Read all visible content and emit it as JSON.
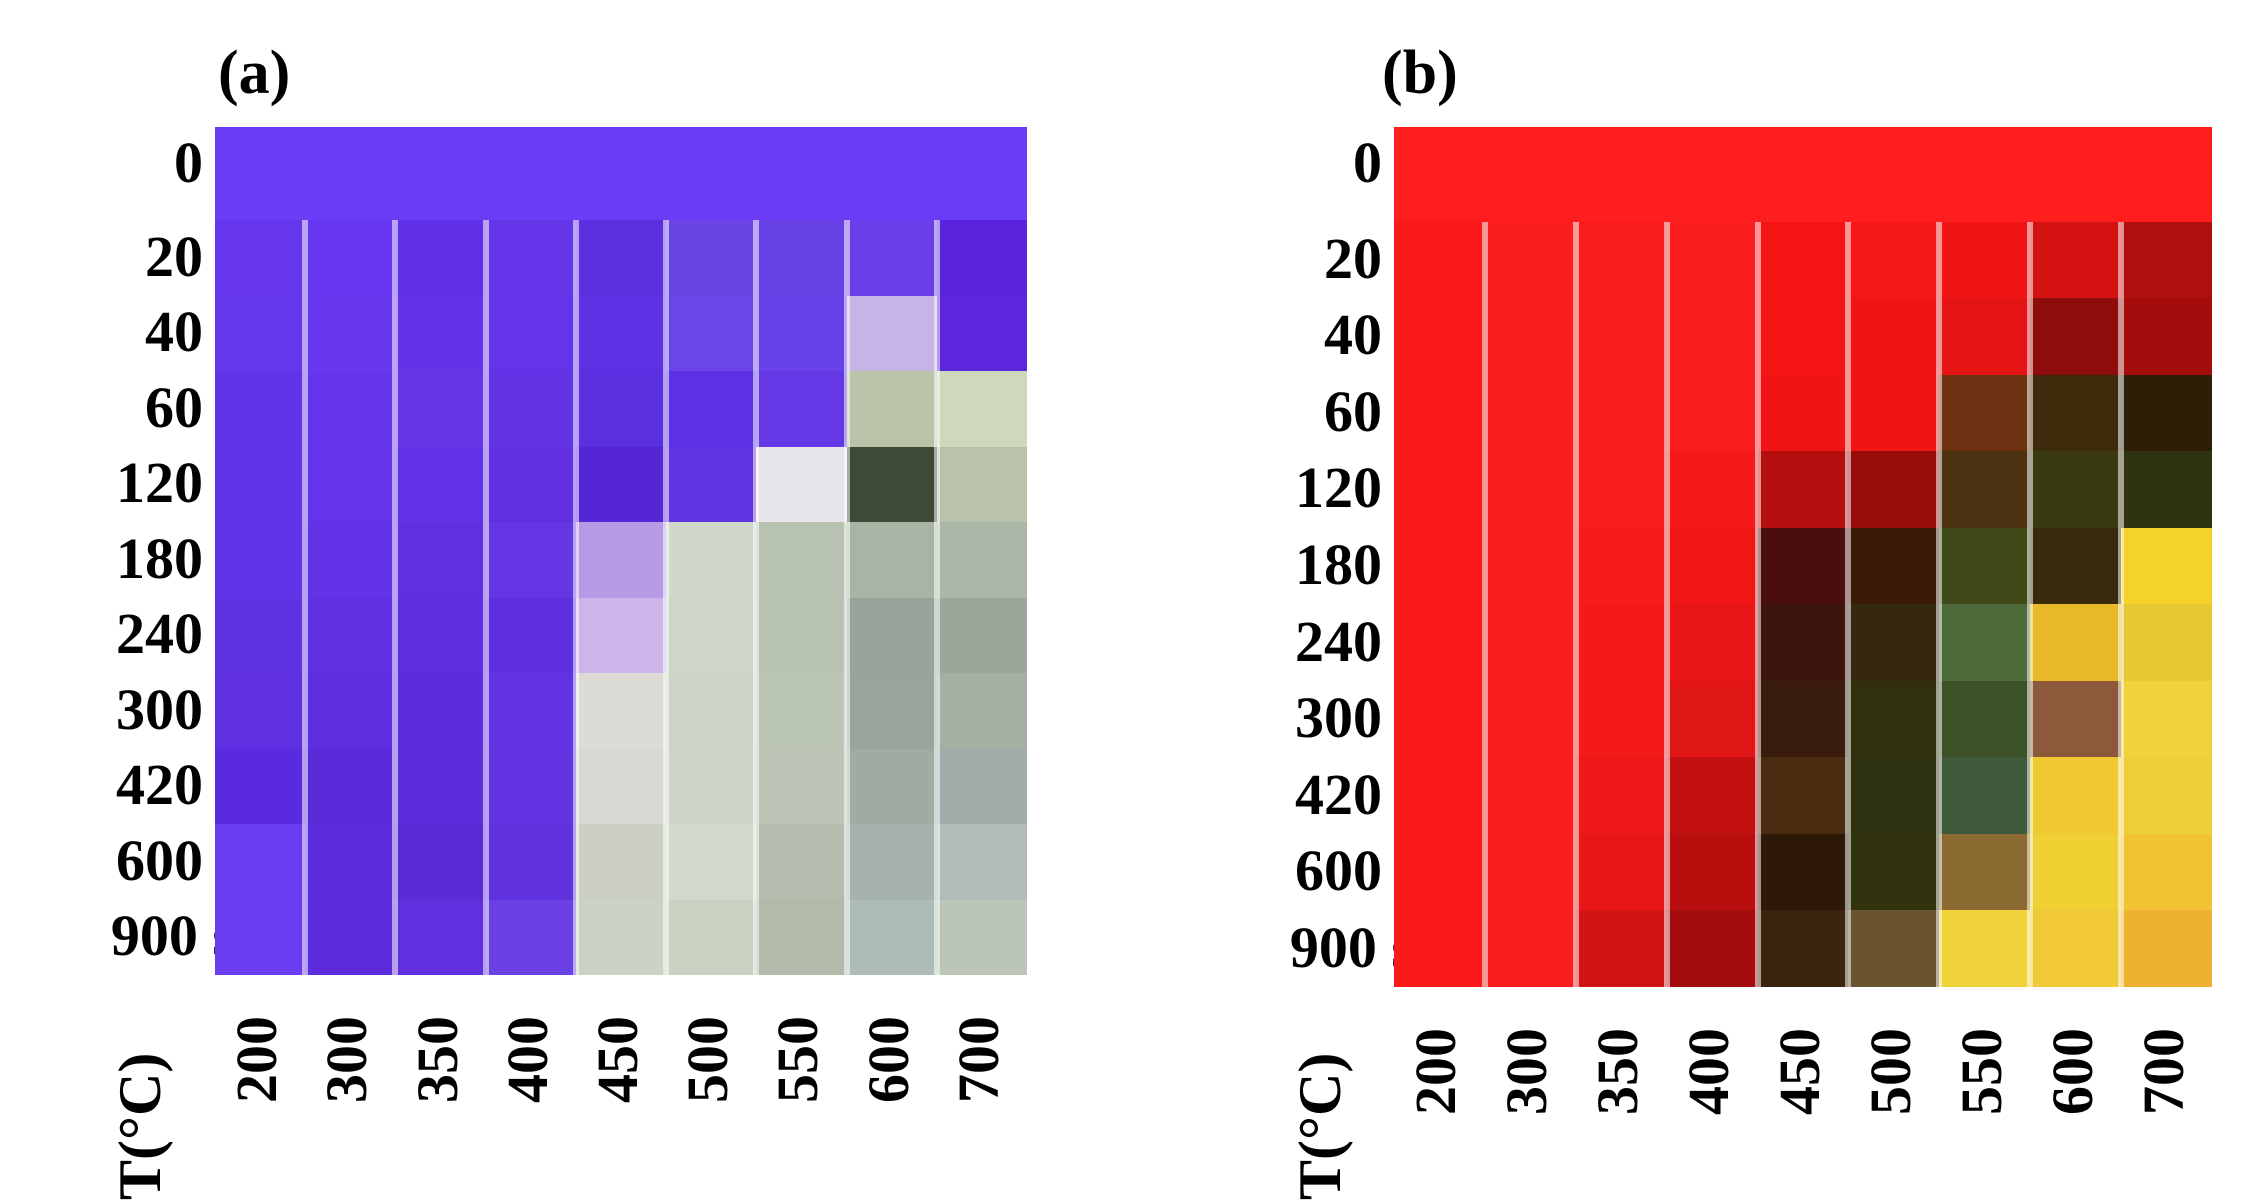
{
  "chart_data": [
    {
      "type": "heatmap",
      "panel_label": "(a)",
      "y_unit": "s",
      "x_title": "T(°C)",
      "x": [
        "200",
        "300",
        "350",
        "400",
        "450",
        "500",
        "550",
        "600",
        "700"
      ],
      "y": [
        "0",
        "20",
        "40",
        "60",
        "120",
        "180",
        "240",
        "300",
        "420",
        "600",
        "900"
      ],
      "colors": [
        [
          "#6a3cf5",
          "#6a3cf5",
          "#6a3cf5",
          "#6a3cf5",
          "#6a3cf5",
          "#6a3cf5",
          "#6a3cf5",
          "#6a3cf5",
          "#6a3cf5"
        ],
        [
          "#6536ec",
          "#6637ef",
          "#6031e6",
          "#6535ea",
          "#5b2fe0",
          "#6b45e4",
          "#6741e6",
          "#6a3ee8",
          "#5a24dc"
        ],
        [
          "#6337ea",
          "#6838ee",
          "#6433e8",
          "#6434ea",
          "#5d30e4",
          "#6b46e6",
          "#6842e8",
          "#c7b3e6",
          "#5b26dc"
        ],
        [
          "#6035e8",
          "#6435ea",
          "#6535e6",
          "#6333e6",
          "#5b2fe0",
          "#5c30e4",
          "#6538e6",
          "#b9c3a8",
          "#cdd8bd"
        ],
        [
          "#6033e6",
          "#6434ea",
          "#6232e6",
          "#6030e0",
          "#5526d6",
          "#6034e0",
          "#e8e4ec",
          "#3e4a35",
          "#b8c2ac"
        ],
        [
          "#6033e6",
          "#6232e6",
          "#6030e0",
          "#6536e4",
          "#b79ae6",
          "#d0d8ca",
          "#b8c2b0",
          "#a8b4a4",
          "#aab6a6"
        ],
        [
          "#5f32e4",
          "#5f30e2",
          "#5e2fe0",
          "#5e2fde",
          "#cdb4ea",
          "#cfd6c8",
          "#b9c3b2",
          "#97a49a",
          "#9aa79a"
        ],
        [
          "#5f30e2",
          "#5d2ee0",
          "#5c2ddc",
          "#6133e4",
          "#dcdbd6",
          "#cdd4c5",
          "#bcc6b4",
          "#98a59a",
          "#a4b0a4"
        ],
        [
          "#5a2ade",
          "#5a2ad8",
          "#5d2ddc",
          "#6234e2",
          "#d9d8d2",
          "#cdd3c6",
          "#bcc5b6",
          "#9eaca2",
          "#a0acaa"
        ],
        [
          "#6a3df0",
          "#5c2cdc",
          "#5b2bd8",
          "#6032de",
          "#ccd0c4",
          "#d2d8cb",
          "#b4bdad",
          "#a6b2ae",
          "#b2bbb6"
        ],
        [
          "#6a3ef0",
          "#5c2cdc",
          "#6030de",
          "#6a40e4",
          "#ccd2c6",
          "#cad2c2",
          "#b2bbaa",
          "#aebcb8",
          "#bcc6b8"
        ]
      ]
    },
    {
      "type": "heatmap",
      "panel_label": "(b)",
      "y_unit": "s",
      "x_title": "T(°C)",
      "x": [
        "200",
        "300",
        "350",
        "400",
        "450",
        "500",
        "550",
        "600",
        "700"
      ],
      "y": [
        "0",
        "20",
        "40",
        "60",
        "120",
        "180",
        "240",
        "300",
        "420",
        "600",
        "900"
      ],
      "colors": [
        [
          "#ff1e1e",
          "#ff1e1e",
          "#ff1e1e",
          "#ff1e1e",
          "#ff1e1e",
          "#ff1e1e",
          "#ff1e1e",
          "#ff1e1e",
          "#ff1e1e"
        ],
        [
          "#fa1a1a",
          "#fb1c1c",
          "#fa1c1c",
          "#fa1d1d",
          "#f51414",
          "#f51616",
          "#f01515",
          "#d41212",
          "#b00f0f"
        ],
        [
          "#fa1a1a",
          "#fb1c1c",
          "#fa1c1c",
          "#fa1d1d",
          "#f51414",
          "#f21414",
          "#e51414",
          "#8f0c0c",
          "#a50d0d"
        ],
        [
          "#fa1a1a",
          "#fb1c1c",
          "#fa1c1c",
          "#fa1d1d",
          "#f21414",
          "#f01414",
          "#6e3212",
          "#3d2a0a",
          "#2e1e08"
        ],
        [
          "#fa1a1a",
          "#fb1c1c",
          "#fa1c1c",
          "#f51818",
          "#b50e0e",
          "#990c0c",
          "#4d3211",
          "#3a3a10",
          "#2f3410"
        ],
        [
          "#fa1a1a",
          "#fb1c1c",
          "#f81b1b",
          "#f01616",
          "#4a0e0e",
          "#3c1a0a",
          "#3f4a18",
          "#3a2a0c",
          "#f5d22a"
        ],
        [
          "#fa1a1a",
          "#fb1c1c",
          "#f41a1a",
          "#e81616",
          "#3c140c",
          "#362810",
          "#4c6a3a",
          "#e8b828",
          "#e6c832"
        ],
        [
          "#fa1a1a",
          "#fb1c1c",
          "#f41a1a",
          "#e01616",
          "#3a1c0e",
          "#30300e",
          "#3d5226",
          "#8c5a3a",
          "#f0d23a"
        ],
        [
          "#fa1a1a",
          "#fb1c1c",
          "#ee1818",
          "#c21010",
          "#4a2c10",
          "#2f3210",
          "#3e5a3a",
          "#f0c832",
          "#ecce3a"
        ],
        [
          "#fa1a1a",
          "#fb1c1c",
          "#e81616",
          "#b80e0e",
          "#2e1808",
          "#31320e",
          "#8a6a30",
          "#eed032",
          "#f0c234"
        ],
        [
          "#fa1a1a",
          "#fb1c1c",
          "#d41414",
          "#a20c0c",
          "#3a240c",
          "#6a5430",
          "#f2d23a",
          "#f0c838",
          "#eeb030"
        ]
      ]
    }
  ]
}
